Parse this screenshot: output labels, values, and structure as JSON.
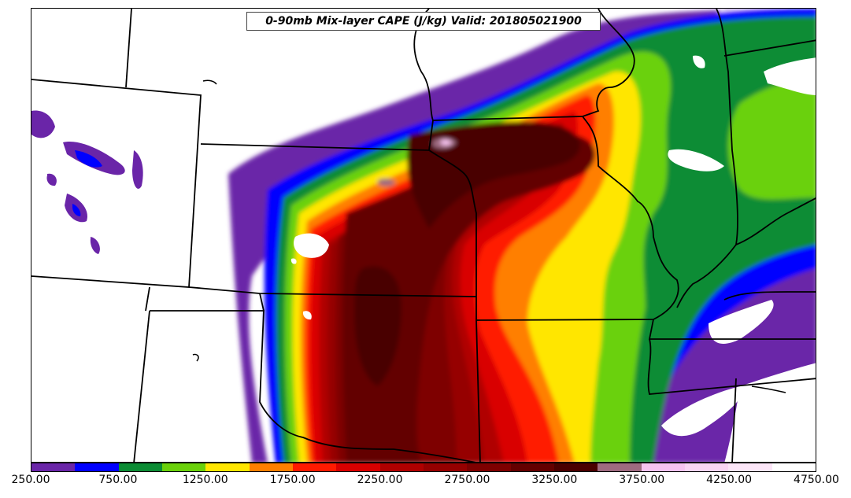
{
  "map": {
    "title": "0-90mb Mix-layer CAPE (J/kg) Valid: 201805021900",
    "variable": "0-90mb Mix-layer CAPE",
    "units": "J/kg",
    "valid": "201805021900",
    "region": "Central United States (Plains / Midwest)"
  },
  "colorbar": {
    "levels": [
      250,
      500,
      750,
      1000,
      1250,
      1500,
      1750,
      2000,
      2250,
      2500,
      2750,
      3000,
      3250,
      3500,
      3750,
      4000,
      4250,
      4500,
      4750
    ],
    "colors": [
      "#6a25a8",
      "#0000ff",
      "#0b8c34",
      "#6ad10a",
      "#ffe600",
      "#ff7f00",
      "#ff1a00",
      "#d90000",
      "#b00000",
      "#960000",
      "#7e0000",
      "#640000",
      "#4a0000",
      "#9e6b80",
      "#f7c3f0",
      "#f9d5f3",
      "#fce6f8",
      "#ffffff"
    ],
    "tick_labels": [
      "250.00",
      "750.00",
      "1250.00",
      "1750.00",
      "2250.00",
      "2750.00",
      "3250.00",
      "3750.00",
      "4250.00",
      "4750.00"
    ]
  }
}
